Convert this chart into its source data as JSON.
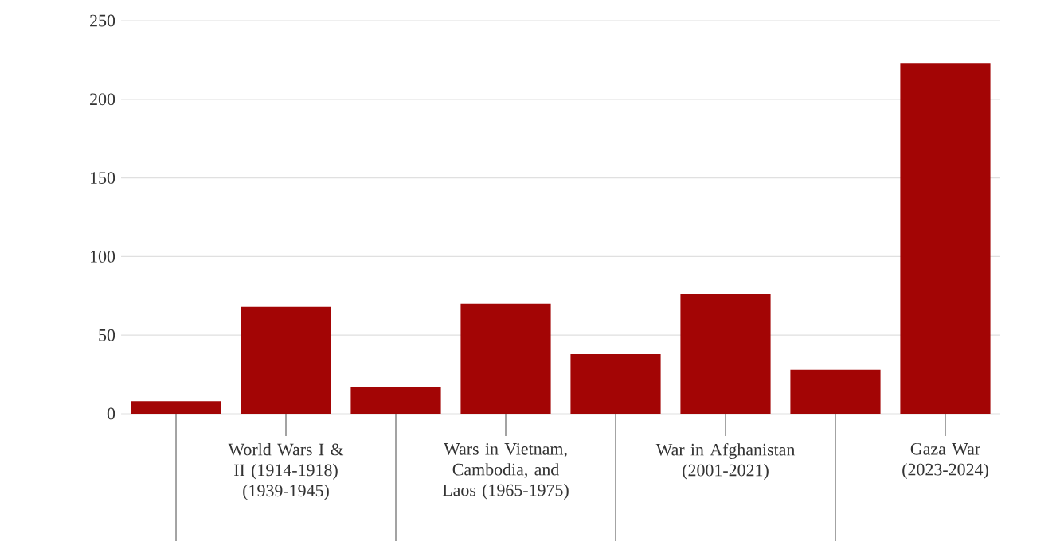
{
  "chart_data": {
    "type": "bar",
    "categories": [
      null,
      "World Wars I & II (1914-1918) (1939-1945)",
      null,
      "Wars in Vietnam, Cambodia, and Laos (1965-1975)",
      null,
      "War in Afghanistan (2001-2021)",
      null,
      "Gaza War (2023-2024)"
    ],
    "values": [
      8,
      68,
      17,
      70,
      38,
      76,
      28,
      223
    ],
    "color": "#a30505",
    "ylim": [
      0,
      250
    ],
    "yticks": [
      0,
      50,
      100,
      150,
      200,
      250
    ],
    "grid": "y"
  }
}
